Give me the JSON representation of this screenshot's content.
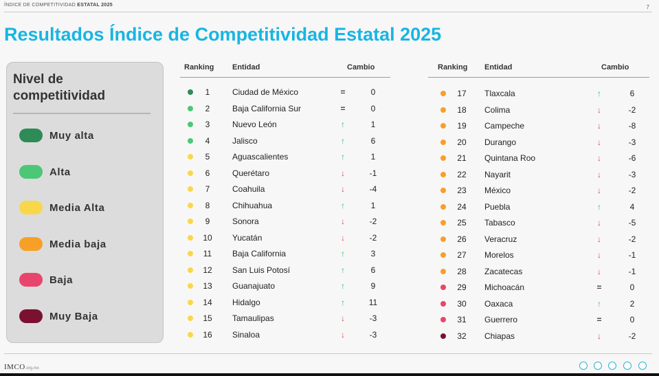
{
  "header": {
    "prefix": "ÍNDICE DE COMPETITIVIDAD",
    "suffix": "ESTATAL 2025",
    "page_number": "7"
  },
  "title": "Resultados Índice de Competitividad Estatal 2025",
  "legend": {
    "title_line1": "Nivel de",
    "title_line2": "competitividad",
    "items": [
      {
        "label": "Muy alta",
        "color": "#2e8b57"
      },
      {
        "label": "Alta",
        "color": "#4cc776"
      },
      {
        "label": "Media Alta",
        "color": "#f8d84a"
      },
      {
        "label": "Media baja",
        "color": "#f7a027"
      },
      {
        "label": "Baja",
        "color": "#e8456d"
      },
      {
        "label": "Muy Baja",
        "color": "#7b1131"
      }
    ]
  },
  "table": {
    "headers": {
      "ranking": "Ranking",
      "entidad": "Entidad",
      "cambio": "Cambio"
    },
    "left_rows": [
      {
        "rank": "1",
        "entidad": "Ciudad de México",
        "arrow": "=",
        "change": "0",
        "level": "Muy alta"
      },
      {
        "rank": "2",
        "entidad": "Baja California Sur",
        "arrow": "=",
        "change": "0",
        "level": "Alta"
      },
      {
        "rank": "3",
        "entidad": "Nuevo León",
        "arrow": "↑",
        "change": "1",
        "level": "Alta"
      },
      {
        "rank": "4",
        "entidad": "Jalisco",
        "arrow": "↑",
        "change": "6",
        "level": "Alta"
      },
      {
        "rank": "5",
        "entidad": "Aguascalientes",
        "arrow": "↑",
        "change": "1",
        "level": "Media Alta"
      },
      {
        "rank": "6",
        "entidad": "Querétaro",
        "arrow": "↓",
        "change": "-1",
        "level": "Media Alta"
      },
      {
        "rank": "7",
        "entidad": "Coahuila",
        "arrow": "↓",
        "change": "-4",
        "level": "Media Alta"
      },
      {
        "rank": "8",
        "entidad": "Chihuahua",
        "arrow": "↑",
        "change": "1",
        "level": "Media Alta"
      },
      {
        "rank": "9",
        "entidad": "Sonora",
        "arrow": "↓",
        "change": "-2",
        "level": "Media Alta"
      },
      {
        "rank": "10",
        "entidad": "Yucatán",
        "arrow": "↓",
        "change": "-2",
        "level": "Media Alta"
      },
      {
        "rank": "11",
        "entidad": "Baja California",
        "arrow": "↑",
        "change": "3",
        "level": "Media Alta"
      },
      {
        "rank": "12",
        "entidad": "San Luis Potosí",
        "arrow": "↑",
        "change": "6",
        "level": "Media Alta"
      },
      {
        "rank": "13",
        "entidad": "Guanajuato",
        "arrow": "↑",
        "change": "9",
        "level": "Media Alta"
      },
      {
        "rank": "14",
        "entidad": "Hidalgo",
        "arrow": "↑",
        "change": "11",
        "level": "Media Alta"
      },
      {
        "rank": "15",
        "entidad": "Tamaulipas",
        "arrow": "↓",
        "change": "-3",
        "level": "Media Alta"
      },
      {
        "rank": "16",
        "entidad": "Sinaloa",
        "arrow": "↓",
        "change": "-3",
        "level": "Media Alta"
      }
    ],
    "right_rows": [
      {
        "rank": "17",
        "entidad": "Tlaxcala",
        "arrow": "↑",
        "change": "6",
        "level": "Media baja"
      },
      {
        "rank": "18",
        "entidad": "Colima",
        "arrow": "↓",
        "change": "-2",
        "level": "Media baja"
      },
      {
        "rank": "19",
        "entidad": "Campeche",
        "arrow": "↓",
        "change": "-8",
        "level": "Media baja"
      },
      {
        "rank": "20",
        "entidad": "Durango",
        "arrow": "↓",
        "change": "-3",
        "level": "Media baja"
      },
      {
        "rank": "21",
        "entidad": "Quintana Roo",
        "arrow": "↓",
        "change": "-6",
        "level": "Media baja"
      },
      {
        "rank": "22",
        "entidad": "Nayarit",
        "arrow": "↓",
        "change": "-3",
        "level": "Media baja"
      },
      {
        "rank": "23",
        "entidad": "México",
        "arrow": "↓",
        "change": "-2",
        "level": "Media baja"
      },
      {
        "rank": "24",
        "entidad": "Puebla",
        "arrow": "↑",
        "change": "4",
        "level": "Media baja"
      },
      {
        "rank": "25",
        "entidad": "Tabasco",
        "arrow": "↓",
        "change": "-5",
        "level": "Media baja"
      },
      {
        "rank": "26",
        "entidad": "Veracruz",
        "arrow": "↓",
        "change": "-2",
        "level": "Media baja"
      },
      {
        "rank": "27",
        "entidad": "Morelos",
        "arrow": "↓",
        "change": "-1",
        "level": "Media baja"
      },
      {
        "rank": "28",
        "entidad": "Zacatecas",
        "arrow": "↓",
        "change": "-1",
        "level": "Media baja"
      },
      {
        "rank": "29",
        "entidad": "Michoacán",
        "arrow": "=",
        "change": "0",
        "level": "Baja"
      },
      {
        "rank": "30",
        "entidad": "Oaxaca",
        "arrow": "↑",
        "change": "2",
        "level": "Baja"
      },
      {
        "rank": "31",
        "entidad": "Guerrero",
        "arrow": "=",
        "change": "0",
        "level": "Baja"
      },
      {
        "rank": "32",
        "entidad": "Chiapas",
        "arrow": "↓",
        "change": "-2",
        "level": "Muy Baja"
      }
    ]
  },
  "arrow_colors": {
    "up": "#2fb86a",
    "down": "#e0453c",
    "equal": "#444444"
  },
  "footer": {
    "logo_text": "IMCO",
    "logo_domain": ".org.mx",
    "social_icons": [
      "twitter-icon",
      "facebook-icon",
      "instagram-icon",
      "youtube-icon",
      "linkedin-icon"
    ]
  }
}
